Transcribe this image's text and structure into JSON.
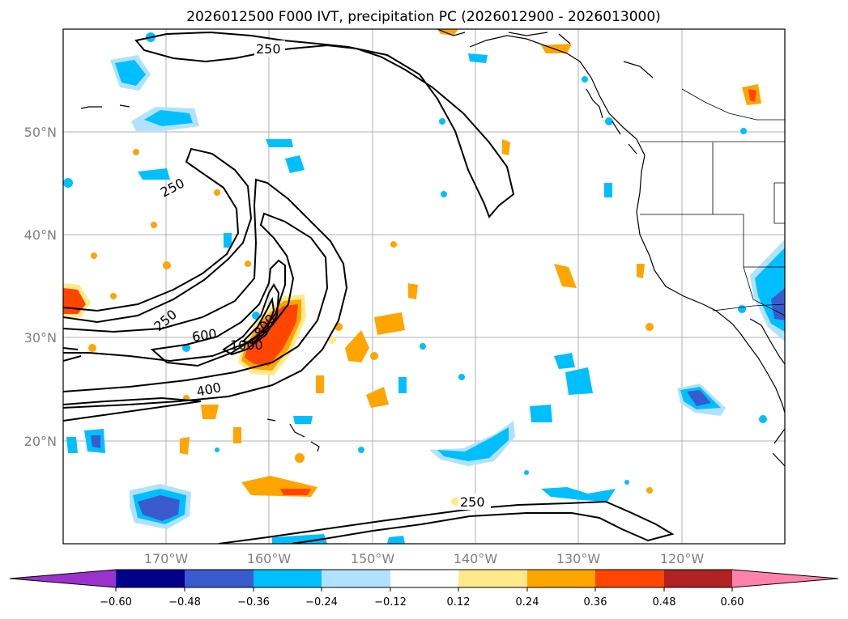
{
  "title": "2026012500 F000 IVT, precipitation PC (2026012900 - 2026013000)",
  "map": {
    "extent": {
      "lon_min": -180,
      "lon_max": -110,
      "lat_min": 10,
      "lat_max": 60
    },
    "lat_ticks": [
      {
        "value": 20,
        "label": "20°N"
      },
      {
        "value": 30,
        "label": "30°N"
      },
      {
        "value": 40,
        "label": "40°N"
      },
      {
        "value": 50,
        "label": "50°N"
      }
    ],
    "lon_ticks": [
      {
        "value": -170,
        "label": "170°W"
      },
      {
        "value": -160,
        "label": "160°W"
      },
      {
        "value": -150,
        "label": "150°W"
      },
      {
        "value": -140,
        "label": "140°W"
      },
      {
        "value": -130,
        "label": "130°W"
      },
      {
        "value": -120,
        "label": "120°W"
      }
    ],
    "ivt_contour_labels": [
      "250",
      "250",
      "250",
      "600",
      "1000",
      "800",
      "400",
      "250"
    ]
  },
  "colorbar": {
    "ticks": [
      "−0.60",
      "−0.48",
      "−0.36",
      "−0.24",
      "−0.12",
      "0.12",
      "0.24",
      "0.36",
      "0.48",
      "0.60"
    ],
    "colors": [
      "#9a32cd",
      "#00008b",
      "#3a5bd0",
      "#00bfff",
      "#b0e2ff",
      "#ffffff",
      "#ffe98a",
      "#ffa500",
      "#ff4500",
      "#b22222",
      "#ff82ab"
    ]
  }
}
